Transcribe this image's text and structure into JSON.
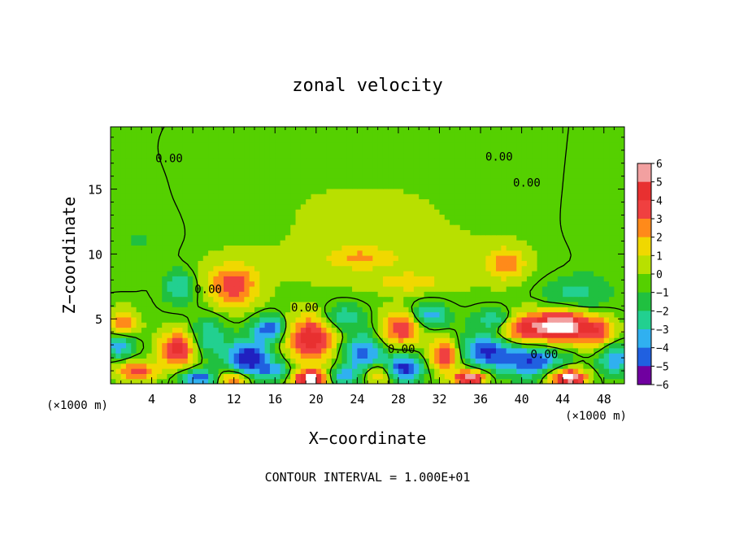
{
  "chart_data": {
    "type": "heatmap",
    "title": "zonal velocity",
    "xlabel": "X−coordinate",
    "ylabel": "Z−coordinate",
    "x_unit_left": "(×1000 m)",
    "x_unit_right": "(×1000 m)",
    "footnote": "CONTOUR INTERVAL = 1.000E+01",
    "xlim": [
      0,
      50
    ],
    "ylim": [
      0,
      19.8
    ],
    "x_ticks": [
      "4",
      "8",
      "12",
      "16",
      "20",
      "24",
      "28",
      "32",
      "36",
      "40",
      "44",
      "48"
    ],
    "y_ticks": [
      "5",
      "10",
      "15"
    ],
    "colorbar": {
      "levels": [
        "6",
        "5",
        "4",
        "3",
        "2",
        "1",
        "0",
        "−1",
        "−2",
        "−3",
        "−4",
        "−5",
        "−6"
      ],
      "colors": [
        "#f2a0a0",
        "#e83030",
        "#f04040",
        "#ff8a1a",
        "#f0d800",
        "#b8e000",
        "#55d000",
        "#20c040",
        "#22d090",
        "#30b0f0",
        "#2060e0",
        "#2020c0",
        "#7000a0"
      ]
    },
    "contour_labels": [
      {
        "text": "0.00",
        "x": 5.7,
        "z": 17.4
      },
      {
        "text": "0.00",
        "x": 37.8,
        "z": 17.5
      },
      {
        "text": "0.00",
        "x": 40.5,
        "z": 15.5
      },
      {
        "text": "0.00",
        "x": 9.5,
        "z": 7.3
      },
      {
        "text": "0.00",
        "x": 18.9,
        "z": 5.9
      },
      {
        "text": "0.00",
        "x": 28.3,
        "z": 2.7
      },
      {
        "text": "0.00",
        "x": 42.2,
        "z": 2.3
      }
    ],
    "features": [
      {
        "x": 0,
        "z": 17.5,
        "v": -0.4,
        "rx": 6,
        "rz": 3
      },
      {
        "x": 12,
        "z": 18,
        "v": 0.3,
        "rx": 10,
        "rz": 2
      },
      {
        "x": 25,
        "z": 13,
        "v": 0.6,
        "rx": 16,
        "rz": 5
      },
      {
        "x": 3,
        "z": 11,
        "v": -0.6,
        "rx": 4,
        "rz": 3
      },
      {
        "x": 48,
        "z": 12,
        "v": -0.5,
        "rx": 4,
        "rz": 5
      },
      {
        "x": 10,
        "z": 8,
        "v": 0.8,
        "rx": 5,
        "rz": 2
      },
      {
        "x": 30,
        "z": 9,
        "v": 0.9,
        "rx": 12,
        "rz": 2
      },
      {
        "x": 12,
        "z": 7.5,
        "v": 3.6,
        "rx": 2.2,
        "rz": 1.6
      },
      {
        "x": 6.8,
        "z": 7.5,
        "v": -3.0,
        "rx": 1.6,
        "rz": 1.3
      },
      {
        "x": 38.5,
        "z": 9.3,
        "v": 2.6,
        "rx": 1.8,
        "rz": 1.2
      },
      {
        "x": 24,
        "z": 9.8,
        "v": 1.8,
        "rx": 3,
        "rz": 0.8
      },
      {
        "x": 29,
        "z": 7.8,
        "v": 1.7,
        "rx": 3,
        "rz": 0.6
      },
      {
        "x": 45,
        "z": 6.8,
        "v": -2.0,
        "rx": 3,
        "rz": 1.5
      },
      {
        "x": 1.2,
        "z": 4.6,
        "v": 3.2,
        "rx": 1.5,
        "rz": 1.2
      },
      {
        "x": 0.8,
        "z": 3,
        "v": -3.5,
        "rx": 1.5,
        "rz": 1.0
      },
      {
        "x": 6.5,
        "z": 2.7,
        "v": 5.0,
        "rx": 1.8,
        "rz": 1.4
      },
      {
        "x": 9.5,
        "z": 3.7,
        "v": -2.5,
        "rx": 1.6,
        "rz": 1.5
      },
      {
        "x": 13.5,
        "z": 2.0,
        "v": -5.5,
        "rx": 2.2,
        "rz": 1.4
      },
      {
        "x": 15.5,
        "z": 4.3,
        "v": -4.5,
        "rx": 1.5,
        "rz": 0.9
      },
      {
        "x": 19.5,
        "z": 3.5,
        "v": 5.3,
        "rx": 2.4,
        "rz": 1.8
      },
      {
        "x": 22.5,
        "z": 5.2,
        "v": -2.5,
        "rx": 2,
        "rz": 1.0
      },
      {
        "x": 24.5,
        "z": 2.3,
        "v": -4.0,
        "rx": 2.0,
        "rz": 1.6
      },
      {
        "x": 28.3,
        "z": 4.3,
        "v": 4.5,
        "rx": 2.0,
        "rz": 1.3
      },
      {
        "x": 28.5,
        "z": 1.2,
        "v": -5.0,
        "rx": 1.8,
        "rz": 1.0
      },
      {
        "x": 31.0,
        "z": 5.3,
        "v": -3.5,
        "rx": 1.8,
        "rz": 0.9
      },
      {
        "x": 32.5,
        "z": 2.2,
        "v": 4.5,
        "rx": 1.5,
        "rz": 1.3
      },
      {
        "x": 36.5,
        "z": 2.6,
        "v": -4.5,
        "rx": 2.4,
        "rz": 1.3
      },
      {
        "x": 37.5,
        "z": 5.0,
        "v": -3.0,
        "rx": 2,
        "rz": 0.8
      },
      {
        "x": 40.0,
        "z": 4.3,
        "v": 4.5,
        "rx": 2.5,
        "rz": 1.2
      },
      {
        "x": 44.0,
        "z": 4.5,
        "v": 7.0,
        "rx": 2.6,
        "rz": 1.3
      },
      {
        "x": 47.5,
        "z": 4.0,
        "v": 3.5,
        "rx": 1.8,
        "rz": 1.3
      },
      {
        "x": 41.0,
        "z": 1.8,
        "v": -4.5,
        "rx": 3.0,
        "rz": 1.2
      },
      {
        "x": 49.0,
        "z": 2.0,
        "v": -3.5,
        "rx": 1.5,
        "rz": 1.2
      },
      {
        "x": 2.5,
        "z": 1.0,
        "v": 4.0,
        "rx": 2,
        "rz": 0.8
      },
      {
        "x": 8.5,
        "z": 0.5,
        "v": -4.5,
        "rx": 1.8,
        "rz": 0.6
      },
      {
        "x": 12.0,
        "z": 0.4,
        "v": 4.2,
        "rx": 1.5,
        "rz": 0.6
      },
      {
        "x": 19.5,
        "z": 0.4,
        "v": 7.0,
        "rx": 1.6,
        "rz": 0.7
      },
      {
        "x": 22.5,
        "z": 0.6,
        "v": -3.0,
        "rx": 1.5,
        "rz": 0.6
      },
      {
        "x": 26.0,
        "z": 0.8,
        "v": 3.5,
        "rx": 1.5,
        "rz": 0.8
      },
      {
        "x": 35.0,
        "z": 0.5,
        "v": 6.5,
        "rx": 1.5,
        "rz": 0.6
      },
      {
        "x": 44.5,
        "z": 0.5,
        "v": 7.0,
        "rx": 1.8,
        "rz": 0.7
      },
      {
        "x": 16.0,
        "z": 1.0,
        "v": -2.5,
        "rx": 1.5,
        "rz": 0.7
      }
    ]
  }
}
